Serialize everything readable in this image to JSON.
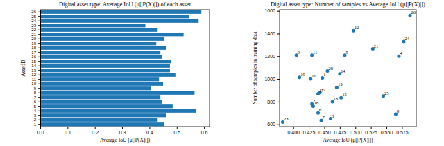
{
  "chart_data": [
    {
      "type": "bar",
      "orientation": "horizontal",
      "title": "Digital asset type: Average IoU (μ[|P(X)|]) of each asset",
      "x_label": "Average IoU (μ[|P(X)|])",
      "y_label": "AssetID",
      "categories": [
        1,
        2,
        3,
        4,
        5,
        6,
        7,
        8,
        9,
        10,
        11,
        12,
        13,
        14,
        15,
        16,
        17,
        18,
        19,
        20,
        21,
        22,
        23,
        24,
        25,
        26
      ],
      "values": [
        0.455,
        0.43,
        0.46,
        0.57,
        0.485,
        0.445,
        0.44,
        0.565,
        0.405,
        0.45,
        0.435,
        0.495,
        0.475,
        0.475,
        0.48,
        0.445,
        0.44,
        0.46,
        0.425,
        0.455,
        0.525,
        0.43,
        0.385,
        0.58,
        0.545,
        0.59
      ],
      "color": "#1f77b4",
      "xlim": [
        0,
        0.62
      ],
      "xticks": [
        {
          "value": 0,
          "label": "0.0"
        },
        {
          "value": 0.1,
          "label": "0.1"
        },
        {
          "value": 0.2,
          "label": "0.2"
        },
        {
          "value": 0.3,
          "label": "0.3"
        },
        {
          "value": 0.4,
          "label": "0.4"
        },
        {
          "value": 0.5,
          "label": "0.5"
        },
        {
          "value": 0.6,
          "label": "0.6"
        }
      ]
    },
    {
      "type": "scatter",
      "title": "Digital asset type: Number of samples vs Average IoU (μ[|P(X)|])",
      "x_label": "Average IoU (μ[|P(X)|])",
      "y_label": "Number of samples in training data",
      "labels": [
        1,
        2,
        3,
        4,
        5,
        6,
        7,
        8,
        9,
        10,
        11,
        12,
        13,
        14,
        15,
        16,
        17,
        18,
        19,
        20,
        21,
        22,
        23,
        24,
        25,
        26
      ],
      "x": [
        0.447,
        0.43,
        0.46,
        0.57,
        0.483,
        0.44,
        0.445,
        0.565,
        0.405,
        0.428,
        0.43,
        0.497,
        0.47,
        0.475,
        0.477,
        0.432,
        0.44,
        0.463,
        0.41,
        0.455,
        0.528,
        0.443,
        0.383,
        0.578,
        0.545,
        0.588
      ],
      "y": [
        1010,
        780,
        650,
        1200,
        1210,
        700,
        635,
        690,
        1210,
        1000,
        1210,
        1425,
        925,
        1045,
        835,
        760,
        870,
        800,
        1015,
        1070,
        1265,
        880,
        620,
        1330,
        850,
        1560
      ],
      "color": "#1f77b4",
      "xlim": [
        0.378,
        0.598
      ],
      "ylim": [
        580,
        1610
      ],
      "xticks": [
        {
          "value": 0.4,
          "label": "0.400"
        },
        {
          "value": 0.425,
          "label": "0.425"
        },
        {
          "value": 0.45,
          "label": "0.450"
        },
        {
          "value": 0.475,
          "label": "0.475"
        },
        {
          "value": 0.5,
          "label": "0.500"
        },
        {
          "value": 0.525,
          "label": "0.525"
        },
        {
          "value": 0.55,
          "label": "0.550"
        },
        {
          "value": 0.575,
          "label": "0.575"
        }
      ],
      "yticks": [
        600,
        800,
        1000,
        1200,
        1400,
        1600
      ]
    }
  ]
}
